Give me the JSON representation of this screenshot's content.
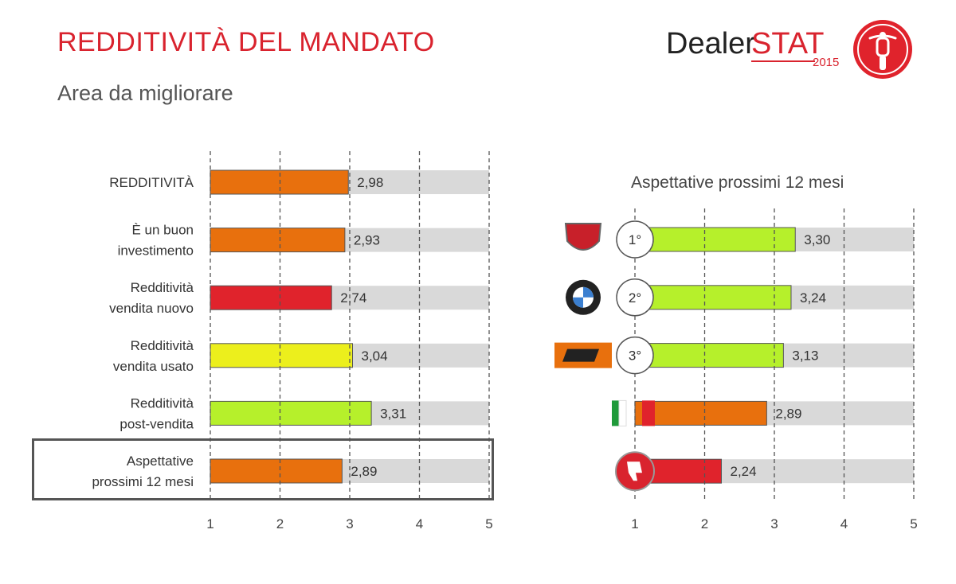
{
  "header": {
    "title": "REDDITIVITÀ DEL MANDATO",
    "subtitle": "Area da migliorare"
  },
  "logo": {
    "brand_a": "Dealer",
    "brand_b": "STAT",
    "year": "2015"
  },
  "colors": {
    "orange": "#e8700d",
    "red": "#e0232c",
    "yellow": "#ecef1c",
    "lime": "#b6f02b",
    "track": "#d9d9d9",
    "accent": "#d9232e"
  },
  "chart_data": [
    {
      "type": "bar",
      "orientation": "horizontal",
      "xlim": [
        1,
        5
      ],
      "ticks": [
        "1",
        "2",
        "3",
        "4",
        "5"
      ],
      "categories": [
        [
          "REDDITIVITÀ"
        ],
        [
          "È un buon",
          "investimento"
        ],
        [
          "Redditività",
          "vendita nuovo"
        ],
        [
          "Redditività",
          "vendita usato"
        ],
        [
          "Redditività",
          "post-vendita"
        ],
        [
          "Aspettative",
          "prossimi 12 mesi"
        ]
      ],
      "values": [
        2.98,
        2.93,
        2.74,
        3.04,
        3.31,
        2.89
      ],
      "value_labels": [
        "2,98",
        "2,93",
        "2,74",
        "3,04",
        "3,31",
        "2,89"
      ],
      "bar_colors": [
        "orange",
        "orange",
        "red",
        "yellow",
        "lime",
        "orange"
      ],
      "highlighted_category": 5
    },
    {
      "type": "bar",
      "orientation": "horizontal",
      "title": "Aspettative prossimi 12 mesi",
      "xlim": [
        1,
        5
      ],
      "ticks": [
        "1",
        "2",
        "3",
        "4",
        "5"
      ],
      "categories": [
        {
          "icon": "ducati-logo-icon",
          "rank": "1°"
        },
        {
          "icon": "bmw-logo-icon",
          "rank": "2°"
        },
        {
          "icon": "ktm-logo-icon",
          "rank": "3°"
        },
        {
          "icon": "italy-flag-icon",
          "rank": ""
        },
        {
          "icon": "thumbs-down-icon",
          "rank": ""
        }
      ],
      "values": [
        3.3,
        3.24,
        3.13,
        2.89,
        2.24
      ],
      "value_labels": [
        "3,30",
        "3,24",
        "3,13",
        "2,89",
        "2,24"
      ],
      "bar_colors": [
        "lime",
        "lime",
        "lime",
        "orange",
        "red"
      ]
    }
  ]
}
